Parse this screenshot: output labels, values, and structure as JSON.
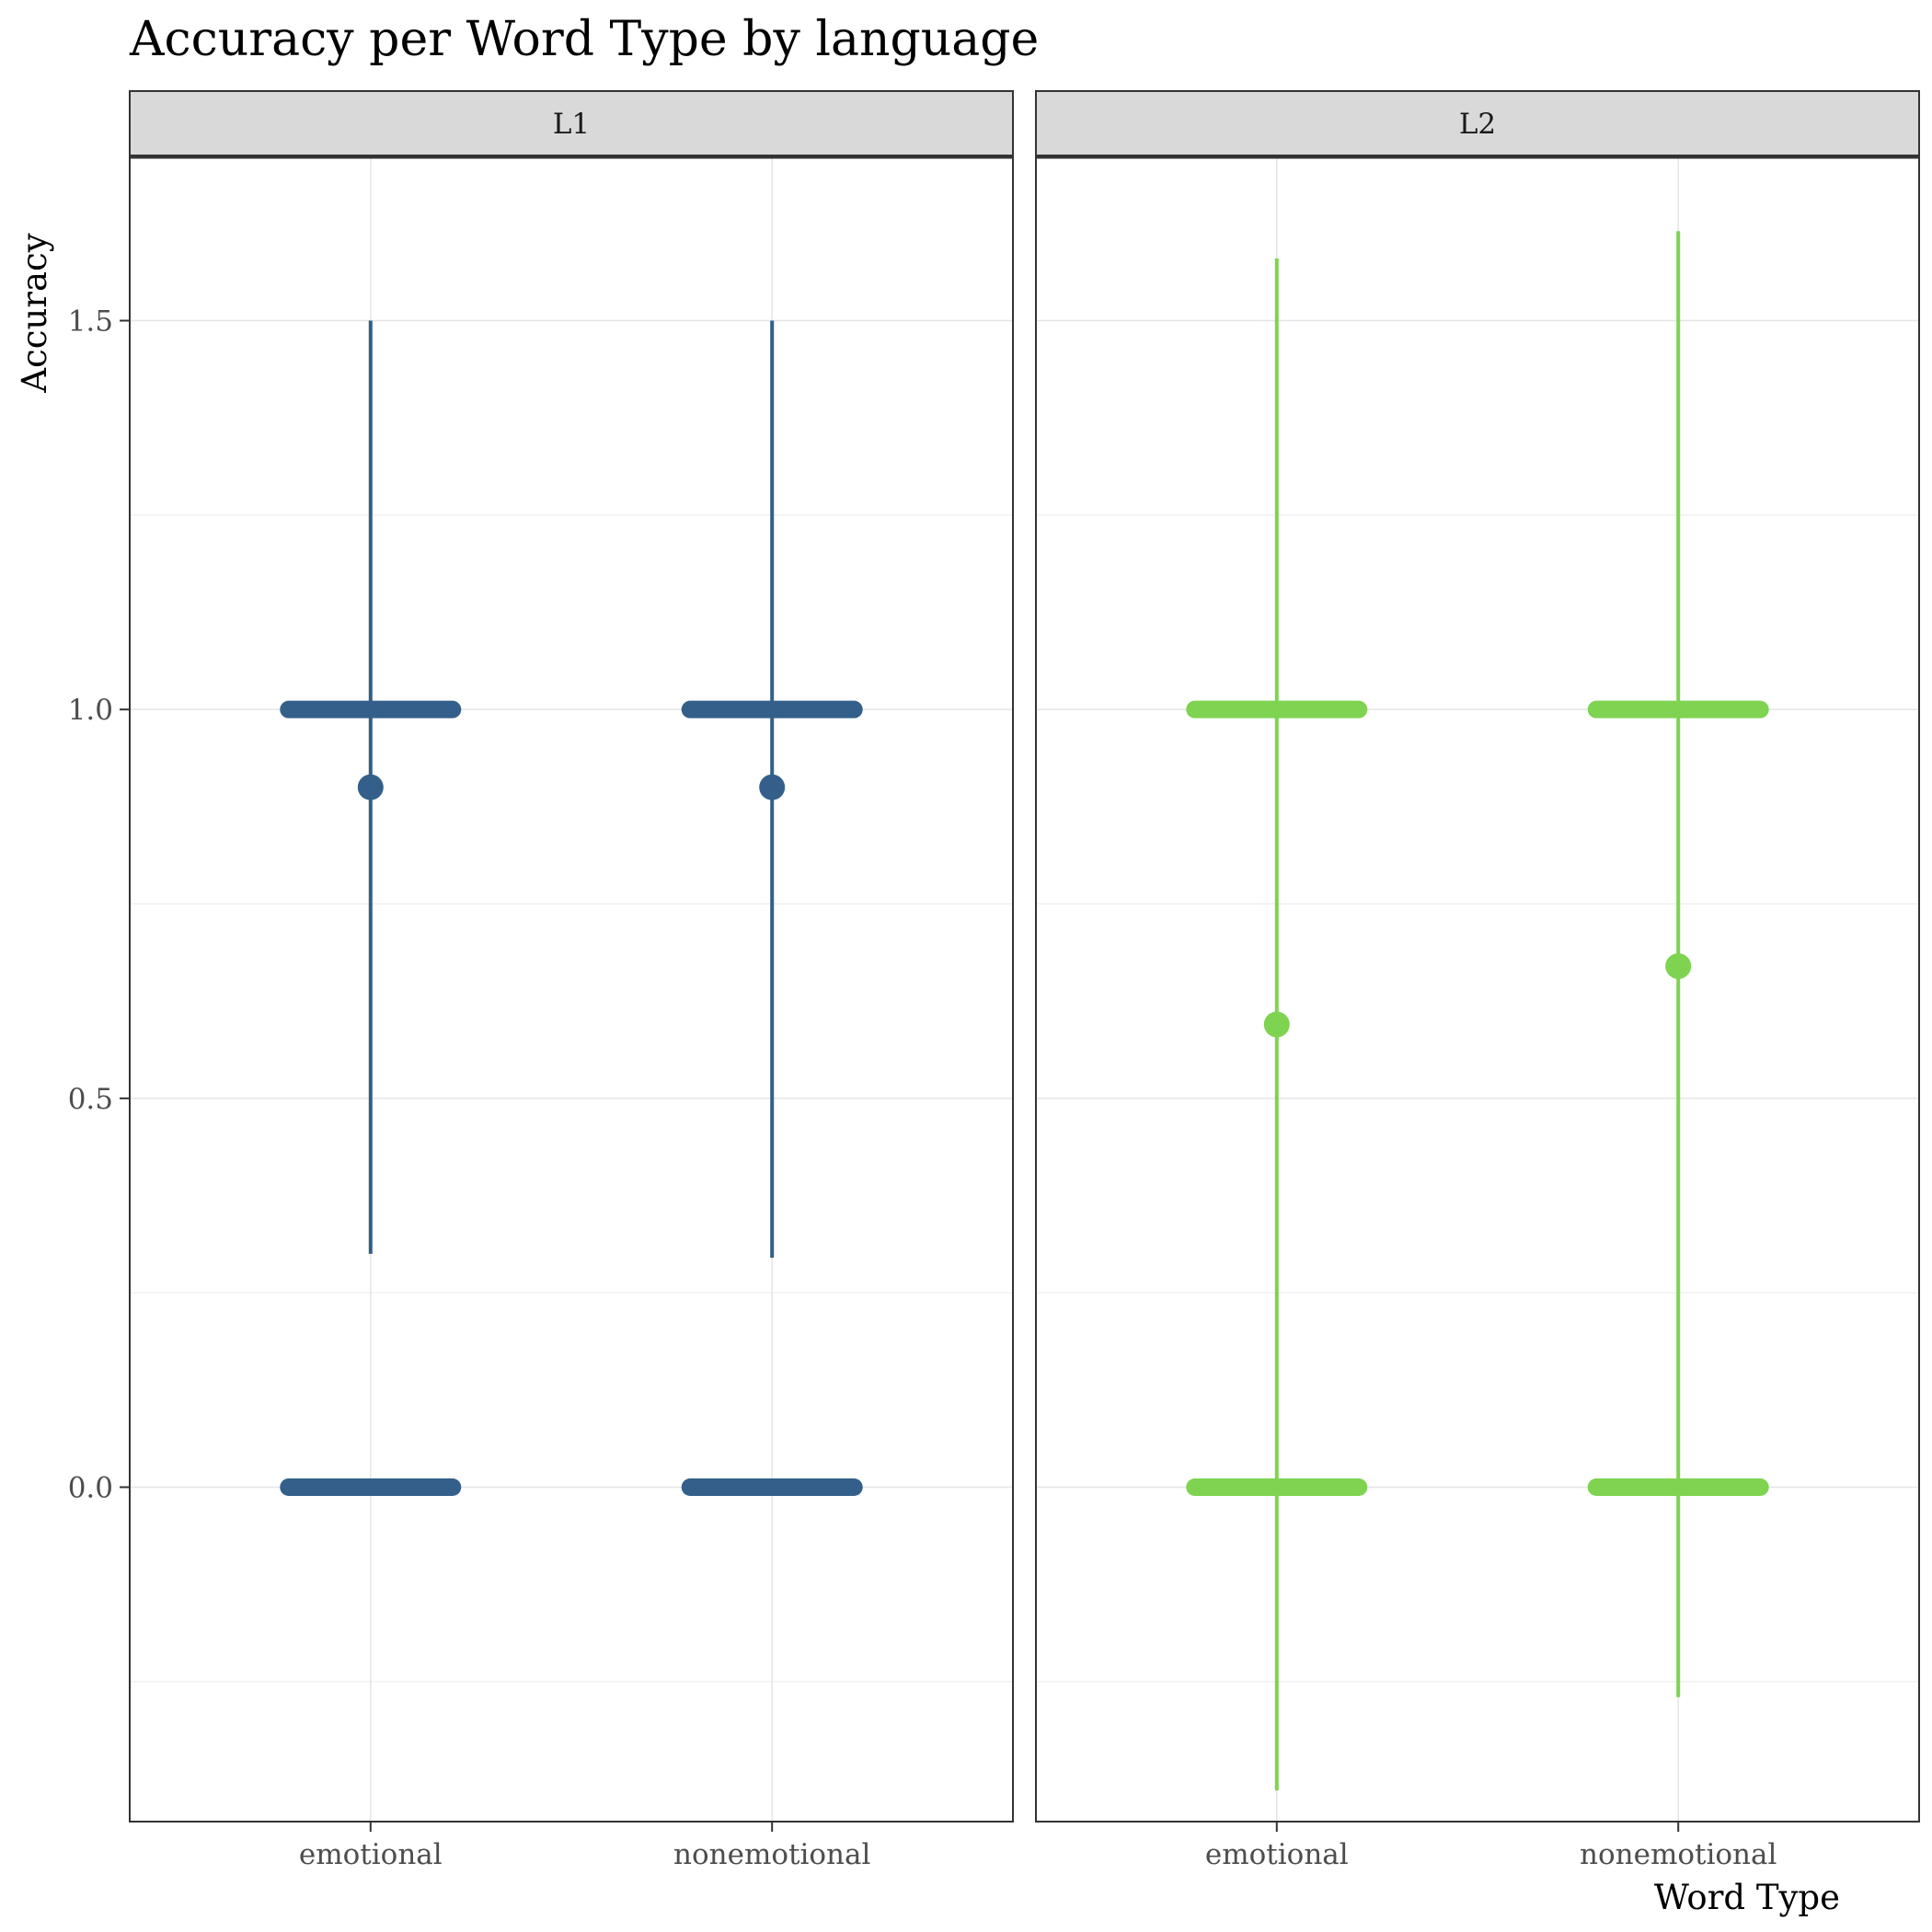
{
  "chart_data": {
    "type": "scatter",
    "title": "Accuracy per Word Type by language",
    "xlabel": "Word Type",
    "ylabel": "Accuracy",
    "ylim": [
      -0.43,
      1.71
    ],
    "yticks": [
      "0.0",
      "0.5",
      "1.0",
      "1.5"
    ],
    "ytick_values": [
      0,
      0.5,
      1.0,
      1.5
    ],
    "categories": [
      "emotional",
      "nonemotional"
    ],
    "grid": true,
    "legend": "none",
    "panels": [
      {
        "name": "L1",
        "color": "#335f8a",
        "series": [
          {
            "category": "emotional",
            "mean": 0.9,
            "lower": 0.3,
            "upper": 1.5,
            "observed_values": [
              0,
              1
            ]
          },
          {
            "category": "nonemotional",
            "mean": 0.9,
            "lower": 0.295,
            "upper": 1.5,
            "observed_values": [
              0,
              1
            ]
          }
        ]
      },
      {
        "name": "L2",
        "color": "#7ed350",
        "series": [
          {
            "category": "emotional",
            "mean": 0.595,
            "lower": -0.39,
            "upper": 1.58,
            "observed_values": [
              0,
              1
            ]
          },
          {
            "category": "nonemotional",
            "mean": 0.67,
            "lower": -0.27,
            "upper": 1.615,
            "observed_values": [
              0,
              1
            ]
          }
        ]
      }
    ]
  }
}
